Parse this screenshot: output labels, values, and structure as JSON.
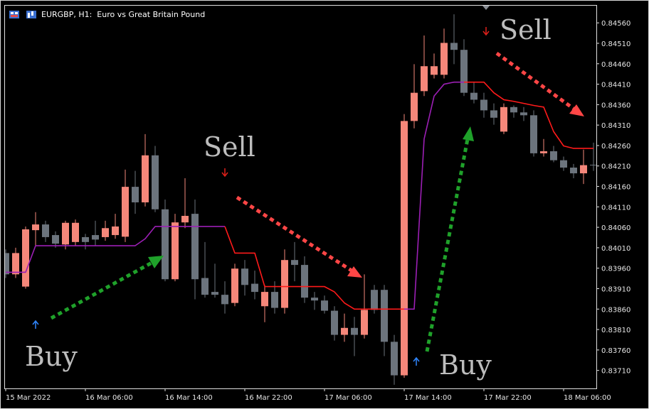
{
  "chart_data": {
    "type": "candlestick",
    "title": "EURGBP, H1:  Euro vs Great Britain Pound",
    "categories": [
      "15 Mar 2022",
      null,
      null,
      null,
      null,
      null,
      null,
      null,
      "16 Mar 06:00",
      null,
      null,
      null,
      null,
      null,
      null,
      null,
      "16 Mar 14:00",
      null,
      null,
      null,
      null,
      null,
      null,
      null,
      "16 Mar 22:00",
      null,
      null,
      null,
      null,
      null,
      null,
      null,
      "17 Mar 06:00",
      null,
      null,
      null,
      null,
      null,
      null,
      null,
      "17 Mar 14:00",
      null,
      null,
      null,
      null,
      null,
      null,
      null,
      "17 Mar 22:00",
      null,
      null,
      null,
      null,
      null,
      null,
      null,
      "18 Mar 06:00",
      null,
      null,
      null
    ],
    "open": [
      0.83997,
      0.83945,
      0.83915,
      0.84053,
      0.84067,
      0.84041,
      0.84018,
      0.84024,
      0.84036,
      0.84041,
      0.84036,
      0.84041,
      0.84037,
      0.84159,
      0.84121,
      0.84236,
      0.84104,
      0.83933,
      0.84072,
      0.84093,
      0.83936,
      0.83902,
      0.83895,
      0.83875,
      0.83959,
      0.83922,
      0.83867,
      0.83902,
      0.83863,
      0.8398,
      0.83968,
      0.83888,
      0.83881,
      0.83856,
      0.83797,
      0.83814,
      0.83797,
      0.83907,
      0.83907,
      0.8378,
      0.83698,
      0.8432,
      0.84393,
      0.84433,
      0.84433,
      0.84511,
      0.84494,
      0.84389,
      0.84372,
      0.84346,
      0.84294,
      0.84354,
      0.84341,
      0.84334,
      0.84241,
      0.84246,
      0.84224,
      0.84206,
      0.84192,
      0.84213
    ],
    "high": [
      0.84006,
      0.8401,
      0.84062,
      0.84097,
      0.84076,
      0.8405,
      0.84076,
      0.84079,
      0.84044,
      0.84076,
      0.84076,
      0.84093,
      0.84201,
      0.84198,
      0.84288,
      0.84259,
      0.84128,
      0.84093,
      0.8418,
      0.84128,
      0.84024,
      0.83971,
      0.83928,
      0.83971,
      0.8398,
      0.83954,
      0.83919,
      0.83928,
      0.84006,
      0.84024,
      0.83989,
      0.83902,
      0.83893,
      0.83867,
      0.83849,
      0.83841,
      0.83945,
      0.83919,
      0.83919,
      0.83797,
      0.84337,
      0.84459,
      0.84529,
      0.84485,
      0.84546,
      0.84581,
      0.8452,
      0.84415,
      0.84389,
      0.84363,
      0.84363,
      0.84358,
      0.84354,
      0.84346,
      0.84276,
      0.84259,
      0.84233,
      0.84215,
      0.8425,
      0.84267
    ],
    "low": [
      0.83936,
      0.83936,
      0.8391,
      0.84015,
      0.84024,
      0.8401,
      0.84006,
      0.84015,
      0.84006,
      0.84015,
      0.84027,
      0.84032,
      0.84024,
      0.84093,
      0.84111,
      0.84097,
      0.83928,
      0.83928,
      0.84058,
      0.83884,
      0.83888,
      0.83888,
      0.83849,
      0.83867,
      0.83893,
      0.83884,
      0.83828,
      0.83849,
      0.83849,
      0.83928,
      0.83875,
      0.83858,
      0.83849,
      0.83783,
      0.8378,
      0.83745,
      0.83788,
      0.83849,
      0.83745,
      0.83675,
      0.83692,
      0.84302,
      0.84381,
      0.84424,
      0.84424,
      0.84459,
      0.84381,
      0.84363,
      0.84328,
      0.84311,
      0.84288,
      0.84328,
      0.8432,
      0.84233,
      0.84233,
      0.84219,
      0.84198,
      0.8418,
      0.84166,
      0.84198
    ],
    "close": [
      0.83945,
      0.83997,
      0.84055,
      0.84067,
      0.84036,
      0.8402,
      0.84071,
      0.84071,
      0.84024,
      0.8403,
      0.84058,
      0.84062,
      0.84159,
      0.84121,
      0.84236,
      0.84104,
      0.83933,
      0.84072,
      0.84088,
      0.83933,
      0.83895,
      0.83895,
      0.83872,
      0.83959,
      0.83919,
      0.83902,
      0.83902,
      0.83863,
      0.8398,
      0.83968,
      0.83888,
      0.83881,
      0.83856,
      0.83797,
      0.83814,
      0.83797,
      0.83858,
      0.83858,
      0.8378,
      0.83698,
      0.8432,
      0.84389,
      0.84454,
      0.84454,
      0.84511,
      0.84494,
      0.84389,
      0.84372,
      0.84346,
      0.84328,
      0.84354,
      0.84341,
      0.84334,
      0.84241,
      0.84246,
      0.84224,
      0.84206,
      0.84192,
      0.84212,
      0.84212
    ],
    "up_color": "#f5877a",
    "down_color": "#6c747d",
    "lines": [
      {
        "color": "#9c1fb5",
        "values": [
          0.8395,
          0.8395,
          0.8395,
          0.84015,
          0.84015,
          0.84015,
          0.84015,
          0.84015,
          0.84015,
          0.84015,
          0.84015,
          0.84015,
          0.84015,
          0.84015,
          0.84032,
          0.84062,
          0.84062,
          0.84062,
          0.84062,
          0.84062,
          0.84062,
          0.84062,
          0.84062,
          null,
          null,
          null,
          null,
          null,
          null,
          null,
          null,
          null,
          null,
          null,
          null,
          null,
          null,
          null,
          null,
          null,
          0.8386,
          0.8386,
          0.84276,
          0.84381,
          0.8441,
          0.84415,
          0.84415,
          null,
          null,
          null,
          null,
          null,
          null,
          null,
          null,
          null,
          null,
          null,
          null,
          null
        ]
      },
      {
        "color": "#ff1a1a",
        "values": [
          null,
          null,
          null,
          null,
          null,
          null,
          null,
          null,
          null,
          null,
          null,
          null,
          null,
          null,
          null,
          null,
          null,
          null,
          null,
          null,
          null,
          null,
          0.84062,
          0.83997,
          0.83997,
          0.83997,
          0.83915,
          0.83915,
          0.83915,
          0.83915,
          0.83915,
          0.83915,
          0.83915,
          0.83902,
          0.83875,
          0.8386,
          0.8386,
          0.8386,
          0.8386,
          0.8386,
          0.8386,
          null,
          null,
          null,
          null,
          null,
          0.84415,
          0.84415,
          0.84415,
          0.84389,
          0.84372,
          0.84368,
          0.84363,
          0.84358,
          0.84354,
          0.84294,
          0.84259,
          0.84253,
          0.84253,
          0.84253
        ]
      }
    ],
    "ylim": [
      0.83666,
      0.84602
    ],
    "yticks": [
      {
        "value": 0.8456,
        "label": "0.84560"
      },
      {
        "value": 0.8451,
        "label": "0.84510"
      },
      {
        "value": 0.8446,
        "label": "0.84460"
      },
      {
        "value": 0.8441,
        "label": "0.84410"
      },
      {
        "value": 0.8436,
        "label": "0.84360"
      },
      {
        "value": 0.8431,
        "label": "0.84310"
      },
      {
        "value": 0.8426,
        "label": "0.84260"
      },
      {
        "value": 0.8421,
        "label": "0.84210"
      },
      {
        "value": 0.8416,
        "label": "0.84160"
      },
      {
        "value": 0.8411,
        "label": "0.84110"
      },
      {
        "value": 0.8406,
        "label": "0.84060"
      },
      {
        "value": 0.8401,
        "label": "0.84010"
      },
      {
        "value": 0.8396,
        "label": "0.83960"
      },
      {
        "value": 0.8391,
        "label": "0.83910"
      },
      {
        "value": 0.8386,
        "label": "0.83860"
      },
      {
        "value": 0.8381,
        "label": "0.83810"
      },
      {
        "value": 0.8376,
        "label": "0.83760"
      },
      {
        "value": 0.8371,
        "label": "0.83710"
      }
    ],
    "grid": false,
    "annotations": [
      "Sell",
      "Sell",
      "Buy",
      "Buy"
    ]
  }
}
